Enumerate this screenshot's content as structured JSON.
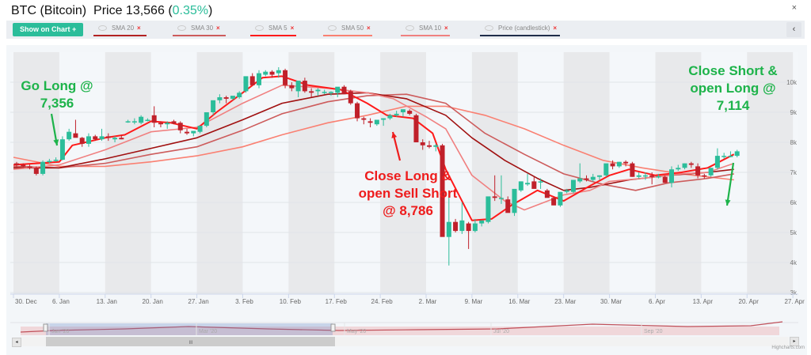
{
  "header": {
    "symbol": "BTC (Bitcoin)",
    "price_label": "Price 13,566",
    "change_open": "(",
    "change": "0.35%",
    "change_close": ")",
    "close_icon": "×"
  },
  "toolbar": {
    "show_on_chart_label": "Show on Chart +",
    "collapse_icon": "‹",
    "indicators": [
      {
        "label": "SMA 20",
        "color": "#b22222"
      },
      {
        "label": "SMA 30",
        "color": "#cd5c5c"
      },
      {
        "label": "SMA 5",
        "color": "#ff1a1a"
      },
      {
        "label": "SMA 50",
        "color": "#fa8072"
      },
      {
        "label": "SMA 10",
        "color": "#f08080"
      },
      {
        "label": "Price (candlestick)",
        "color": "#1f2d4a"
      }
    ],
    "remove_icon": "×"
  },
  "annotations": {
    "go_long": {
      "line1": "Go Long @",
      "line2": "7,356"
    },
    "close_long": {
      "line1": "Close Long &",
      "line2": "open Sell Short",
      "line3": "@ 8,786"
    },
    "close_short": {
      "line1": "Close Short &",
      "line2": "open Long @",
      "line3": "7,114"
    }
  },
  "navigator": {
    "labels": [
      "Jan '20",
      "Mar '20",
      "May '20",
      "Jul '20",
      "Sep '20"
    ],
    "left_arrow": "◂",
    "right_arrow": "▸",
    "grip": "III"
  },
  "credit": "Highcharts.com",
  "chart_data": {
    "type": "candlestick",
    "title": "BTC (Bitcoin) Price 13,566 (0.35%)",
    "xlabel": "",
    "ylabel": "",
    "ylim": [
      3000,
      10500
    ],
    "yticks": [
      "3k",
      "4k",
      "5k",
      "6k",
      "7k",
      "8k",
      "9k",
      "10k"
    ],
    "xticks": [
      "30. Dec",
      "6. Jan",
      "13. Jan",
      "20. Jan",
      "27. Jan",
      "3. Feb",
      "10. Feb",
      "17. Feb",
      "24. Feb",
      "2. Mar",
      "9. Mar",
      "16. Mar",
      "23. Mar",
      "30. Mar",
      "6. Apr",
      "13. Apr",
      "20. Apr",
      "27. Apr"
    ],
    "legend": [
      "SMA 20",
      "SMA 30",
      "SMA 5",
      "SMA 50",
      "SMA 10",
      "Price (candlestick)"
    ],
    "candles_note": "day index from 30 Dec 2019; values [open, high, low, close]",
    "candles": [
      [
        0,
        7300,
        7350,
        7180,
        7250
      ],
      [
        1,
        7250,
        7300,
        7150,
        7200
      ],
      [
        2,
        7200,
        7260,
        7100,
        7150
      ],
      [
        3,
        7150,
        7200,
        6900,
        6950
      ],
      [
        4,
        6950,
        7400,
        6900,
        7350
      ],
      [
        5,
        7350,
        7450,
        7300,
        7380
      ],
      [
        6,
        7380,
        7500,
        7350,
        7420
      ],
      [
        7,
        7420,
        8200,
        7400,
        8100
      ],
      [
        8,
        8100,
        8450,
        8050,
        8350
      ],
      [
        9,
        8300,
        8750,
        8250,
        8150
      ],
      [
        10,
        8150,
        8180,
        7850,
        7950
      ],
      [
        11,
        7950,
        8300,
        7850,
        8200
      ],
      [
        12,
        8200,
        8250,
        8050,
        8100
      ],
      [
        13,
        8100,
        8450,
        8050,
        8200
      ],
      [
        14,
        8200,
        8300,
        8050,
        8150
      ],
      [
        15,
        8100,
        8200,
        8000,
        8150
      ],
      [
        16,
        8150,
        8250,
        8100,
        8100
      ],
      [
        17,
        8700,
        8750,
        8650,
        8700
      ],
      [
        18,
        8700,
        8800,
        8600,
        8700
      ],
      [
        19,
        8650,
        8900,
        8600,
        8850
      ],
      [
        20,
        8750,
        8800,
        8700,
        8750
      ],
      [
        21,
        8900,
        9200,
        8500,
        8650
      ],
      [
        22,
        8650,
        8700,
        8500,
        8600
      ],
      [
        23,
        8600,
        8700,
        8450,
        8650
      ],
      [
        24,
        8700,
        8750,
        8600,
        8620
      ],
      [
        25,
        8650,
        8700,
        8300,
        8400
      ],
      [
        26,
        8350,
        8450,
        8250,
        8300
      ],
      [
        27,
        8300,
        8350,
        8200,
        8380
      ],
      [
        28,
        8350,
        8500,
        8300,
        8550
      ],
      [
        29,
        8550,
        8900,
        8500,
        9000
      ],
      [
        30,
        9000,
        9300,
        8900,
        9400
      ],
      [
        31,
        9400,
        9600,
        9300,
        9500
      ],
      [
        32,
        9500,
        9550,
        9300,
        9450
      ],
      [
        33,
        9450,
        9500,
        9400,
        9550
      ],
      [
        34,
        9500,
        9700,
        9450,
        9650
      ],
      [
        35,
        9700,
        10100,
        9650,
        10200
      ],
      [
        36,
        10200,
        10300,
        9900,
        9900
      ],
      [
        37,
        9900,
        10400,
        9800,
        10300
      ],
      [
        38,
        10250,
        10400,
        10200,
        10350
      ],
      [
        39,
        10350,
        10400,
        10150,
        10250
      ],
      [
        40,
        10300,
        10500,
        10150,
        10400
      ],
      [
        41,
        10400,
        10450,
        9800,
        9900
      ],
      [
        42,
        9900,
        10000,
        9700,
        9800
      ],
      [
        43,
        9700,
        10000,
        9500,
        10050
      ],
      [
        44,
        10050,
        10150,
        9650,
        9700
      ],
      [
        45,
        9700,
        9800,
        9500,
        9650
      ],
      [
        46,
        9700,
        9800,
        9550,
        9750
      ],
      [
        47,
        9650,
        9750,
        9600,
        9680
      ],
      [
        48,
        9650,
        9700,
        9550,
        9680
      ],
      [
        49,
        9650,
        9700,
        9500,
        9850
      ],
      [
        50,
        9850,
        9900,
        9600,
        9600
      ],
      [
        51,
        9700,
        9750,
        9250,
        9300
      ],
      [
        52,
        9300,
        9350,
        8700,
        8800
      ],
      [
        53,
        8800,
        8850,
        8600,
        8750
      ],
      [
        54,
        8700,
        8800,
        8500,
        8650
      ],
      [
        55,
        8600,
        8700,
        8550,
        8750
      ],
      [
        56,
        8750,
        8800,
        8550,
        8800
      ],
      [
        57,
        8800,
        8950,
        8750,
        8900
      ],
      [
        58,
        8900,
        9050,
        8850,
        8950
      ],
      [
        59,
        9000,
        9100,
        8850,
        9100
      ],
      [
        60,
        9050,
        9100,
        8900,
        8950
      ],
      [
        61,
        8900,
        8950,
        8150,
        8000
      ],
      [
        62,
        8000,
        8100,
        7750,
        7900
      ],
      [
        63,
        7900,
        8050,
        7800,
        7850
      ],
      [
        64,
        7850,
        7950,
        7700,
        7900
      ],
      [
        65,
        7900,
        7950,
        5200,
        4850
      ],
      [
        66,
        4850,
        6400,
        3900,
        5350
      ],
      [
        67,
        5350,
        5450,
        5000,
        5050
      ],
      [
        68,
        5050,
        6000,
        4950,
        5400
      ],
      [
        69,
        5300,
        5350,
        4450,
        5050
      ],
      [
        70,
        5050,
        5450,
        5000,
        5300
      ],
      [
        71,
        5300,
        5350,
        5200,
        5400
      ],
      [
        72,
        5350,
        5900,
        5300,
        6200
      ],
      [
        73,
        6200,
        6900,
        6050,
        6150
      ],
      [
        74,
        6150,
        6900,
        5950,
        6150
      ],
      [
        75,
        6100,
        6200,
        5900,
        5650
      ],
      [
        76,
        5650,
        6400,
        5550,
        6450
      ],
      [
        77,
        6400,
        6700,
        6350,
        6700
      ],
      [
        78,
        6600,
        6950,
        6550,
        6650
      ],
      [
        79,
        6700,
        6850,
        6550,
        6450
      ],
      [
        80,
        6700,
        6800,
        6450,
        6700
      ],
      [
        81,
        6400,
        6450,
        6250,
        6150
      ],
      [
        82,
        6150,
        6200,
        5950,
        5900
      ],
      [
        83,
        5900,
        6350,
        5850,
        6350
      ],
      [
        84,
        6350,
        6450,
        6300,
        6400
      ],
      [
        85,
        6350,
        6700,
        6300,
        6750
      ],
      [
        86,
        6700,
        7300,
        6650,
        6800
      ],
      [
        87,
        6800,
        6900,
        6700,
        6750
      ],
      [
        88,
        6750,
        6950,
        6700,
        6850
      ],
      [
        89,
        6850,
        6900,
        6750,
        6900
      ],
      [
        90,
        6900,
        7250,
        6850,
        7300
      ],
      [
        91,
        7300,
        7400,
        7100,
        7200
      ],
      [
        92,
        7200,
        7350,
        7150,
        7350
      ],
      [
        93,
        7350,
        7400,
        7200,
        7300
      ],
      [
        94,
        7300,
        7350,
        6850,
        6850
      ],
      [
        95,
        6850,
        7000,
        6800,
        6900
      ],
      [
        96,
        6900,
        7000,
        6750,
        6900
      ],
      [
        97,
        6900,
        7000,
        6600,
        6850
      ],
      [
        98,
        6850,
        6950,
        6800,
        6870
      ],
      [
        99,
        6850,
        6900,
        6650,
        6650
      ],
      [
        100,
        6650,
        7200,
        6500,
        7100
      ],
      [
        101,
        7100,
        7250,
        7050,
        7150
      ],
      [
        102,
        7150,
        7300,
        7100,
        7300
      ],
      [
        103,
        7300,
        7350,
        7150,
        7250
      ],
      [
        104,
        7200,
        7300,
        6800,
        6900
      ],
      [
        105,
        6900,
        6950,
        6800,
        6880
      ],
      [
        106,
        6900,
        7150,
        6850,
        7150
      ],
      [
        107,
        7150,
        7800,
        7100,
        7550
      ],
      [
        108,
        7550,
        7650,
        7450,
        7550
      ],
      [
        109,
        7550,
        7700,
        7500,
        7550
      ],
      [
        110,
        7550,
        7750,
        7500,
        7700
      ]
    ],
    "series": [
      {
        "name": "SMA 5",
        "color": "#ff1a1a",
        "points": [
          [
            0,
            7250
          ],
          [
            7,
            7350
          ],
          [
            9,
            7900
          ],
          [
            14,
            8150
          ],
          [
            17,
            8250
          ],
          [
            21,
            8700
          ],
          [
            24,
            8650
          ],
          [
            28,
            8450
          ],
          [
            31,
            9000
          ],
          [
            35,
            9650
          ],
          [
            38,
            10150
          ],
          [
            41,
            10200
          ],
          [
            45,
            9900
          ],
          [
            50,
            9750
          ],
          [
            54,
            9300
          ],
          [
            57,
            8900
          ],
          [
            61,
            8800
          ],
          [
            64,
            8300
          ],
          [
            66,
            7100
          ],
          [
            70,
            5400
          ],
          [
            73,
            5450
          ],
          [
            76,
            5900
          ],
          [
            80,
            6400
          ],
          [
            84,
            6050
          ],
          [
            88,
            6550
          ],
          [
            91,
            6900
          ],
          [
            94,
            7100
          ],
          [
            98,
            6900
          ],
          [
            102,
            7000
          ],
          [
            106,
            7150
          ],
          [
            110,
            7600
          ]
        ]
      },
      {
        "name": "SMA 10",
        "color": "#f08080",
        "points": [
          [
            0,
            7100
          ],
          [
            7,
            7250
          ],
          [
            14,
            7750
          ],
          [
            21,
            8350
          ],
          [
            28,
            8500
          ],
          [
            35,
            9300
          ],
          [
            41,
            9900
          ],
          [
            48,
            9800
          ],
          [
            54,
            9650
          ],
          [
            58,
            9450
          ],
          [
            63,
            8850
          ],
          [
            66,
            8450
          ],
          [
            70,
            6900
          ],
          [
            75,
            6050
          ],
          [
            78,
            5750
          ],
          [
            84,
            6250
          ],
          [
            88,
            6400
          ],
          [
            91,
            6700
          ],
          [
            96,
            6800
          ],
          [
            102,
            6950
          ],
          [
            106,
            7000
          ],
          [
            110,
            7300
          ]
        ]
      },
      {
        "name": "SMA 20",
        "color": "#a01010",
        "points": [
          [
            0,
            7150
          ],
          [
            7,
            7150
          ],
          [
            14,
            7450
          ],
          [
            21,
            7800
          ],
          [
            28,
            8150
          ],
          [
            35,
            8750
          ],
          [
            41,
            9300
          ],
          [
            48,
            9600
          ],
          [
            54,
            9650
          ],
          [
            60,
            9450
          ],
          [
            66,
            8900
          ],
          [
            70,
            8150
          ],
          [
            75,
            7400
          ],
          [
            80,
            6800
          ],
          [
            84,
            6400
          ],
          [
            88,
            6500
          ],
          [
            94,
            6750
          ],
          [
            100,
            6900
          ],
          [
            106,
            7000
          ],
          [
            110,
            7100
          ]
        ]
      },
      {
        "name": "SMA 30",
        "color": "#cd5c5c",
        "points": [
          [
            0,
            7200
          ],
          [
            7,
            7150
          ],
          [
            14,
            7300
          ],
          [
            21,
            7600
          ],
          [
            28,
            7850
          ],
          [
            35,
            8400
          ],
          [
            41,
            8950
          ],
          [
            48,
            9350
          ],
          [
            54,
            9550
          ],
          [
            60,
            9600
          ],
          [
            66,
            9300
          ],
          [
            72,
            8300
          ],
          [
            78,
            7600
          ],
          [
            84,
            6950
          ],
          [
            90,
            6600
          ],
          [
            95,
            6400
          ],
          [
            100,
            6650
          ],
          [
            106,
            6800
          ],
          [
            110,
            6950
          ]
        ]
      },
      {
        "name": "SMA 50",
        "color": "#fa8072",
        "points": [
          [
            0,
            7500
          ],
          [
            7,
            7200
          ],
          [
            14,
            7200
          ],
          [
            21,
            7350
          ],
          [
            28,
            7550
          ],
          [
            35,
            7850
          ],
          [
            41,
            8250
          ],
          [
            48,
            8650
          ],
          [
            54,
            8900
          ],
          [
            60,
            9200
          ],
          [
            66,
            9200
          ],
          [
            72,
            8900
          ],
          [
            78,
            8450
          ],
          [
            84,
            7900
          ],
          [
            90,
            7400
          ],
          [
            96,
            7150
          ],
          [
            102,
            6950
          ],
          [
            106,
            6850
          ],
          [
            110,
            6750
          ]
        ]
      }
    ]
  }
}
